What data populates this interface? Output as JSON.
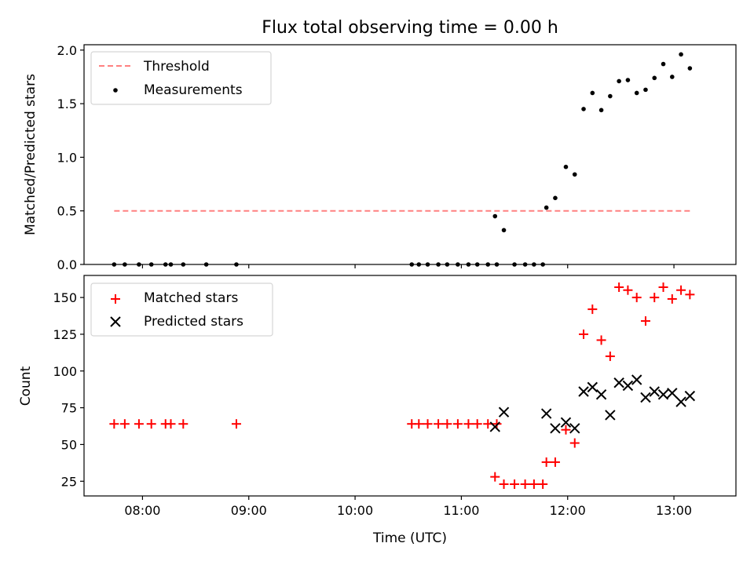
{
  "chart_data": [
    {
      "type": "scatter",
      "title": "Flux total observing time = 0.00 h",
      "xlabel": "",
      "ylabel": "Matched/Predicted stars",
      "ylim": [
        0,
        2.05
      ],
      "yticks": [
        0.0,
        0.5,
        1.0,
        1.5,
        2.0
      ],
      "ytick_labels": [
        "0.0",
        "0.5",
        "1.0",
        "1.5",
        "2.0"
      ],
      "legend_position": "upper-left",
      "threshold": {
        "name": "Threshold",
        "value": 0.5,
        "x_start": "07:44",
        "x_end": "13:09",
        "color": "#ff8080",
        "style": "dashed"
      },
      "series": [
        {
          "name": "Measurements",
          "color": "#000000",
          "marker": "dot",
          "points": [
            [
              "07:44",
              0
            ],
            [
              "07:50",
              0
            ],
            [
              "07:58",
              0
            ],
            [
              "08:05",
              0
            ],
            [
              "08:13",
              0
            ],
            [
              "08:16",
              0
            ],
            [
              "08:23",
              0
            ],
            [
              "08:36",
              0
            ],
            [
              "08:53",
              0
            ],
            [
              "10:32",
              0
            ],
            [
              "10:36",
              0
            ],
            [
              "10:41",
              0
            ],
            [
              "10:47",
              0
            ],
            [
              "10:52",
              0
            ],
            [
              "10:58",
              0
            ],
            [
              "11:04",
              0
            ],
            [
              "11:09",
              0
            ],
            [
              "11:15",
              0
            ],
            [
              "11:20",
              0
            ],
            [
              "11:19",
              0.45
            ],
            [
              "11:24",
              0.32
            ],
            [
              "11:30",
              0
            ],
            [
              "11:36",
              0
            ],
            [
              "11:41",
              0
            ],
            [
              "11:46",
              0
            ],
            [
              "11:48",
              0.53
            ],
            [
              "11:53",
              0.62
            ],
            [
              "11:59",
              0.91
            ],
            [
              "12:04",
              0.84
            ],
            [
              "12:09",
              1.45
            ],
            [
              "12:14",
              1.6
            ],
            [
              "12:19",
              1.44
            ],
            [
              "12:24",
              1.57
            ],
            [
              "12:29",
              1.71
            ],
            [
              "12:34",
              1.72
            ],
            [
              "12:39",
              1.6
            ],
            [
              "12:44",
              1.63
            ],
            [
              "12:49",
              1.74
            ],
            [
              "12:54",
              1.87
            ],
            [
              "12:59",
              1.75
            ],
            [
              "13:04",
              1.96
            ],
            [
              "13:09",
              1.83
            ]
          ]
        }
      ]
    },
    {
      "type": "scatter",
      "title": "",
      "xlabel": "Time (UTC)",
      "ylabel": "Count",
      "ylim": [
        15,
        165
      ],
      "yticks": [
        25,
        50,
        75,
        100,
        125,
        150
      ],
      "ytick_labels": [
        "25",
        "50",
        "75",
        "100",
        "125",
        "150"
      ],
      "legend_position": "upper-left",
      "series": [
        {
          "name": "Matched stars",
          "color": "#ff0000",
          "marker": "plus",
          "points": [
            [
              "07:44",
              64
            ],
            [
              "07:50",
              64
            ],
            [
              "07:58",
              64
            ],
            [
              "08:05",
              64
            ],
            [
              "08:13",
              64
            ],
            [
              "08:16",
              64
            ],
            [
              "08:23",
              64
            ],
            [
              "08:53",
              64
            ],
            [
              "10:32",
              64
            ],
            [
              "10:36",
              64
            ],
            [
              "10:41",
              64
            ],
            [
              "10:47",
              64
            ],
            [
              "10:52",
              64
            ],
            [
              "10:58",
              64
            ],
            [
              "11:04",
              64
            ],
            [
              "11:09",
              64
            ],
            [
              "11:15",
              64
            ],
            [
              "11:20",
              64
            ],
            [
              "11:19",
              28
            ],
            [
              "11:24",
              23
            ],
            [
              "11:30",
              23
            ],
            [
              "11:36",
              23
            ],
            [
              "11:41",
              23
            ],
            [
              "11:46",
              23
            ],
            [
              "11:48",
              38
            ],
            [
              "11:53",
              38
            ],
            [
              "11:59",
              60
            ],
            [
              "12:04",
              51
            ],
            [
              "12:09",
              125
            ],
            [
              "12:14",
              142
            ],
            [
              "12:19",
              121
            ],
            [
              "12:24",
              110
            ],
            [
              "12:29",
              157
            ],
            [
              "12:34",
              155
            ],
            [
              "12:39",
              150
            ],
            [
              "12:44",
              134
            ],
            [
              "12:49",
              150
            ],
            [
              "12:54",
              157
            ],
            [
              "12:59",
              149
            ],
            [
              "13:04",
              155
            ],
            [
              "13:09",
              152
            ]
          ]
        },
        {
          "name": "Predicted stars",
          "color": "#000000",
          "marker": "x",
          "points": [
            [
              "11:19",
              62
            ],
            [
              "11:24",
              72
            ],
            [
              "11:48",
              71
            ],
            [
              "11:53",
              61
            ],
            [
              "11:59",
              65
            ],
            [
              "12:04",
              61
            ],
            [
              "12:09",
              86
            ],
            [
              "12:14",
              89
            ],
            [
              "12:19",
              84
            ],
            [
              "12:24",
              70
            ],
            [
              "12:29",
              92
            ],
            [
              "12:34",
              90
            ],
            [
              "12:39",
              94
            ],
            [
              "12:44",
              82
            ],
            [
              "12:49",
              86
            ],
            [
              "12:54",
              84
            ],
            [
              "12:59",
              85
            ],
            [
              "13:04",
              79
            ],
            [
              "13:09",
              83
            ]
          ]
        }
      ]
    }
  ],
  "x_axis": {
    "range": [
      "07:27",
      "13:35"
    ],
    "ticks": [
      "08:00",
      "09:00",
      "10:00",
      "11:00",
      "12:00",
      "13:00"
    ],
    "tick_labels": [
      "08:00",
      "09:00",
      "10:00",
      "11:00",
      "12:00",
      "13:00"
    ]
  }
}
